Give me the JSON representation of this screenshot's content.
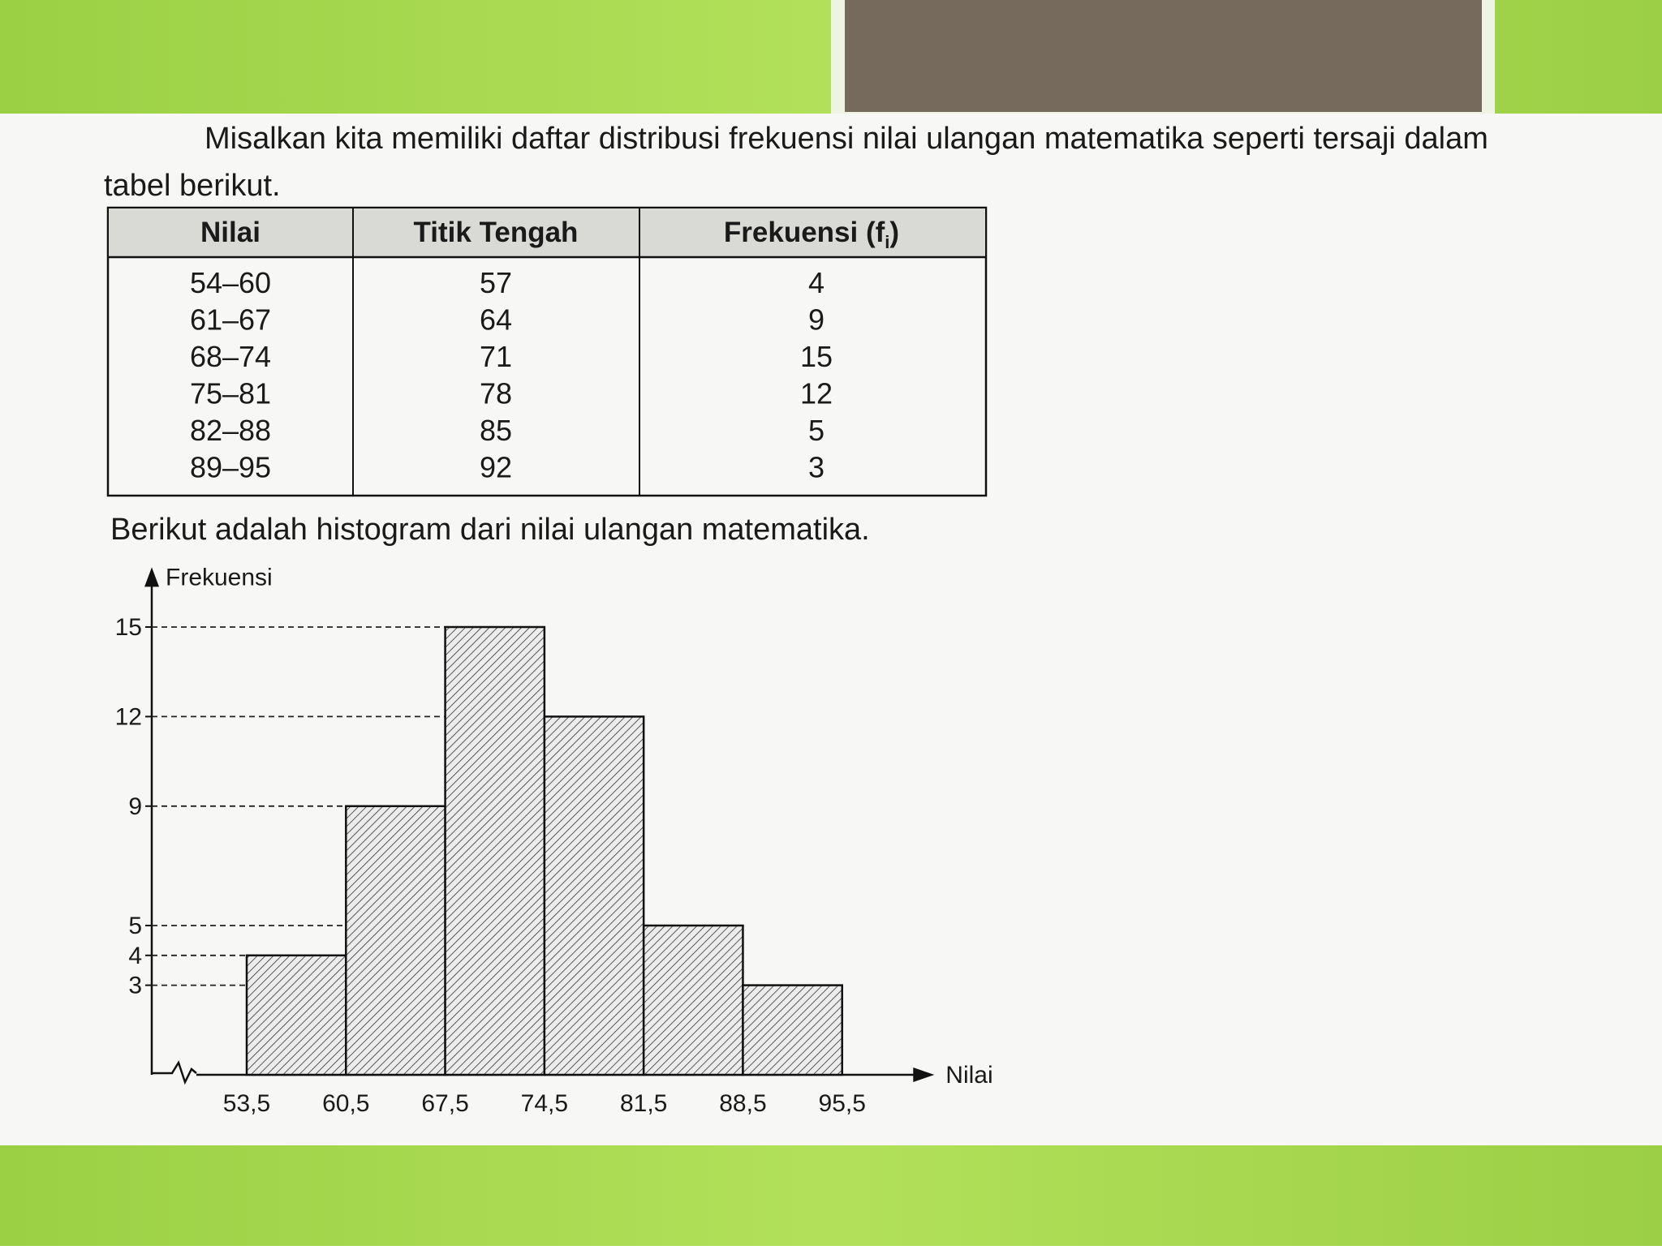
{
  "intro_lines": [
    "Misalkan kita memiliki daftar distribusi frekuensi nilai ulangan matematika seperti tersaji dalam",
    "tabel berikut."
  ],
  "table": {
    "headers": [
      "Nilai",
      "Titik Tengah",
      {
        "main": "Frekuensi (f",
        "sub": "i",
        "end": ")"
      }
    ],
    "rows": [
      [
        "54–60",
        57,
        4
      ],
      [
        "61–67",
        64,
        9
      ],
      [
        "68–74",
        71,
        15
      ],
      [
        "75–81",
        78,
        12
      ],
      [
        "82–88",
        85,
        5
      ],
      [
        "89–95",
        92,
        3
      ]
    ]
  },
  "histogram_intro": "Berikut adalah histogram dari nilai ulangan matematika.",
  "chart_data": {
    "type": "histogram",
    "xlabel": "Nilai",
    "ylabel": "Frekuensi",
    "bins": [
      53.5,
      60.5,
      67.5,
      74.5,
      81.5,
      88.5,
      95.5
    ],
    "values": [
      4,
      9,
      15,
      12,
      5,
      3
    ],
    "xlim": [
      47,
      102
    ],
    "ylim": [
      0,
      17
    ],
    "xticks": [
      {
        "value": 53.5,
        "label": "53,5"
      },
      {
        "value": 60.5,
        "label": "60,5"
      },
      {
        "value": 67.5,
        "label": "67,5"
      },
      {
        "value": 74.5,
        "label": "74,5"
      },
      {
        "value": 81.5,
        "label": "81,5"
      },
      {
        "value": 88.5,
        "label": "88,5"
      },
      {
        "value": 95.5,
        "label": "95,5"
      }
    ],
    "yticks": [
      3,
      4,
      5,
      9,
      12,
      15
    ],
    "grid": true,
    "axis_break": true
  }
}
